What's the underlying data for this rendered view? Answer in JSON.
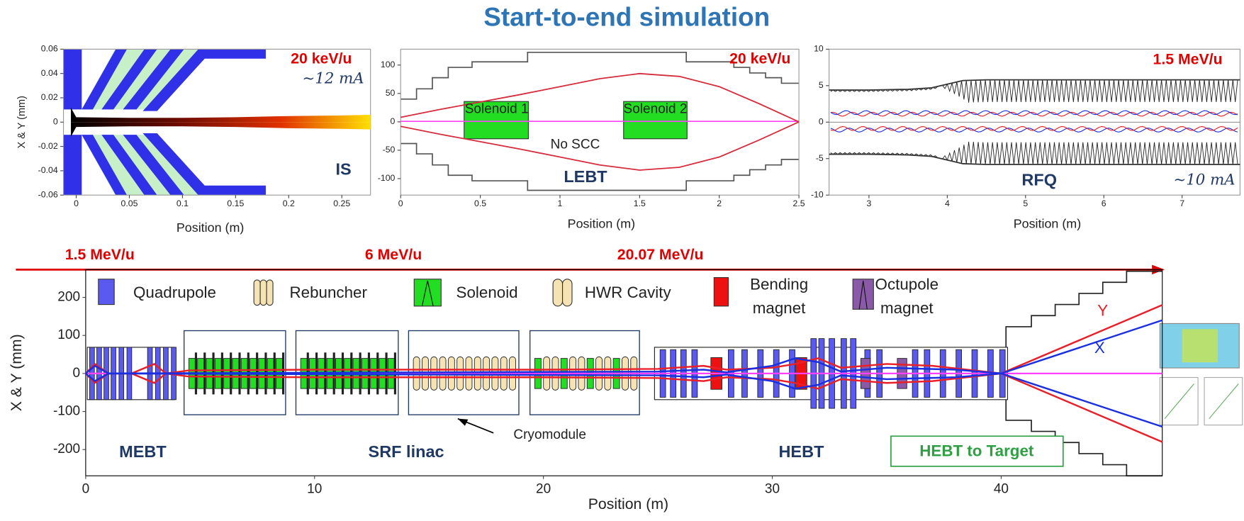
{
  "title": "Start-to-end simulation",
  "chart_data": [
    {
      "type": "area",
      "xlabel": "Position (m)",
      "ylabel": "X & Y (mm)",
      "xlim": [
        -0.012,
        0.277
      ],
      "xticks": [
        0,
        0.05,
        0.1,
        0.15,
        0.2,
        0.25
      ],
      "ylim": [
        -0.06,
        0.06
      ],
      "yticks": [
        -0.06,
        -0.04,
        -0.02,
        0,
        0.02,
        0.04,
        0.06
      ],
      "x": [
        -0.005,
        0,
        0.05,
        0.1,
        0.15,
        0.2,
        0.25,
        0.277
      ],
      "values": [
        0.012,
        0.004,
        0.0035,
        0.0035,
        0.004,
        0.005,
        0.0055,
        0.006
      ],
      "annotations": [
        "20 keV/u",
        "~12 mA",
        "IS"
      ]
    },
    {
      "type": "line",
      "xlabel": "Position (m)",
      "xlim": [
        0,
        2.5
      ],
      "xticks": [
        0,
        0.5,
        1,
        1.5,
        2,
        2.5
      ],
      "ylim": [
        -129,
        128
      ],
      "yticks": [
        -100,
        -50,
        0,
        50,
        100
      ],
      "x": [
        0,
        0.25,
        0.5,
        0.75,
        1,
        1.25,
        1.5,
        1.75,
        2,
        2.25,
        2.5
      ],
      "values": [
        8,
        22,
        35,
        48,
        62,
        76,
        85,
        80,
        62,
        32,
        0
      ],
      "color": "#d62c3c",
      "annotations": [
        "20 keV/u",
        "Solenoid 1",
        "Solenoid 2",
        "No SCC",
        "LEBT"
      ]
    },
    {
      "type": "line",
      "xlabel": "Position (m)",
      "xlim": [
        2.49,
        7.74
      ],
      "xticks": [
        3,
        4,
        5,
        6,
        7
      ],
      "ylim": [
        -10,
        10
      ],
      "yticks": [
        -10,
        -5,
        0,
        5,
        10
      ],
      "x": [
        2.49,
        3,
        3.5,
        3.8,
        4,
        4.2,
        4.5,
        5,
        6,
        7,
        7.74
      ],
      "values": [
        4.4,
        4.4,
        4.5,
        4.7,
        5.2,
        5.7,
        5.8,
        5.8,
        5.8,
        5.8,
        5.8
      ],
      "color": "#333333",
      "annotations": [
        "1.5 MeV/u",
        "RFQ",
        "~10 mA"
      ]
    },
    {
      "type": "line",
      "xlabel": "Position (m)",
      "ylabel": "X & Y (mm)",
      "xlim": [
        0,
        47.04
      ],
      "xticks": [
        0,
        10,
        20,
        30,
        40
      ],
      "ylim": [
        -269,
        273
      ],
      "yticks": [
        -200,
        -100,
        0,
        100,
        200
      ],
      "series": [
        {
          "name": "Y",
          "color": "#e8202a",
          "x": [
            0,
            0.4,
            1,
            2,
            3,
            3.5,
            4.5,
            10,
            20,
            25,
            27,
            28,
            30,
            31,
            32,
            33,
            35,
            37,
            40,
            47.04
          ],
          "values": [
            0,
            25,
            0,
            0,
            25,
            0,
            8,
            10,
            10,
            12,
            20,
            10,
            15,
            25,
            40,
            15,
            25,
            20,
            0,
            180
          ]
        },
        {
          "name": "X",
          "color": "#1a2fe0",
          "x": [
            0,
            0.4,
            1,
            25,
            27,
            28,
            30,
            31,
            32,
            33,
            35,
            38,
            40,
            47.04
          ],
          "values": [
            0,
            20,
            0,
            5,
            10,
            3,
            20,
            40,
            30,
            5,
            15,
            10,
            0,
            140
          ]
        }
      ],
      "legend_items": [
        [
          "Quadrupole"
        ],
        [
          "Rebuncher"
        ],
        [
          "Solenoid"
        ],
        [
          "HWR Cavity"
        ],
        [
          "Bending",
          "magnet"
        ],
        [
          "Octupole",
          "magnet"
        ]
      ],
      "annotations": [
        "1.5 MeV/u",
        "6 MeV/u",
        "20.07 MeV/u",
        "MEBT",
        "SRF linac",
        "HEBT",
        "HEBT to Target",
        "Cryomodule"
      ]
    }
  ]
}
